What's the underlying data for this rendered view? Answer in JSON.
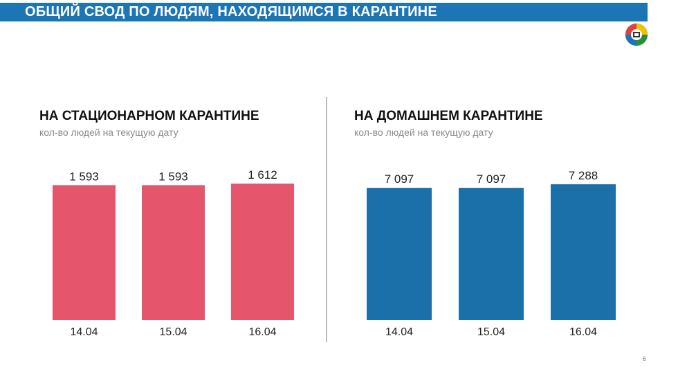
{
  "header": {
    "title": "ОБЩИЙ СВОД ПО ЛЮДЯМ, НАХОДЯЩИМСЯ В КАРАНТИНЕ"
  },
  "logo": {
    "icon": "emblem-logo-icon"
  },
  "page_number": "6",
  "colors": {
    "header_bg": "#1c75b5",
    "stationary": "#e5556c",
    "home": "#1c70aa"
  },
  "chart_data": [
    {
      "type": "bar",
      "title": "НА СТАЦИОНАРНОМ КАРАНТИНЕ",
      "subtitle": "кол-во людей на текущую дату",
      "categories": [
        "14.04",
        "15.04",
        "16.04"
      ],
      "values": [
        1593,
        1593,
        1612
      ],
      "value_labels": [
        "1 593",
        "1 593",
        "1 612"
      ],
      "color": "#e5556c",
      "grid": false,
      "legend": "none"
    },
    {
      "type": "bar",
      "title": "НА ДОМАШНЕМ КАРАНТИНЕ",
      "subtitle": "кол-во людей на текущую дату",
      "categories": [
        "14.04",
        "15.04",
        "16.04"
      ],
      "values": [
        7097,
        7097,
        7288
      ],
      "value_labels": [
        "7 097",
        "7 097",
        "7 288"
      ],
      "color": "#1c70aa",
      "grid": false,
      "legend": "none"
    }
  ]
}
